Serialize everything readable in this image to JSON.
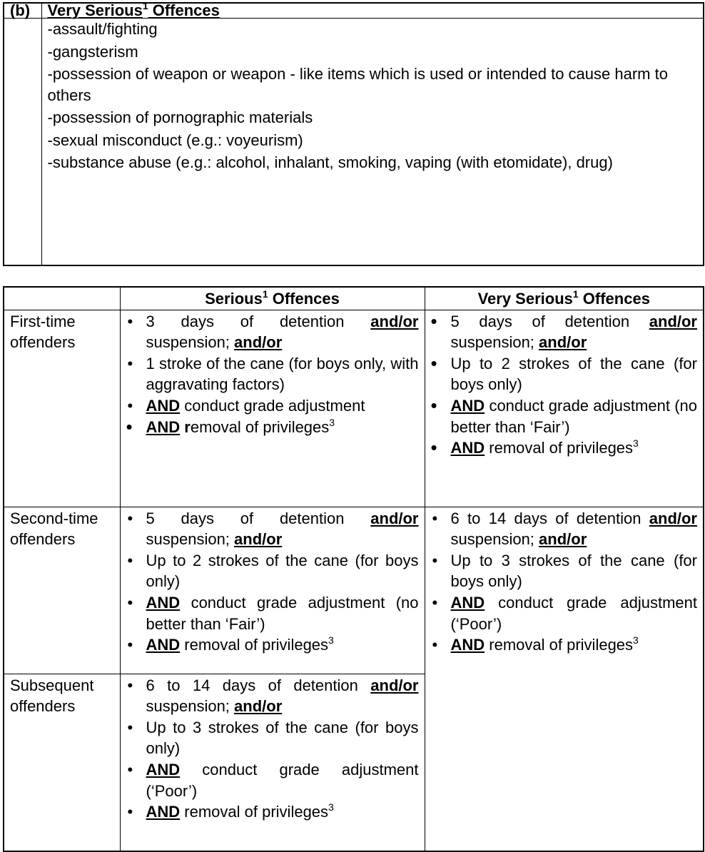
{
  "offence_list": {
    "label": "(b)",
    "heading": [
      {
        "t": "Very Serious",
        "s": "u"
      },
      {
        "t": "1",
        "s": "sup"
      },
      {
        "t": " Offences",
        "s": "u"
      }
    ],
    "items": [
      "-assault/fighting",
      "-gangsterism",
      "-possession of weapon or weapon - like items which is used or intended to cause harm to others",
      "-possession of pornographic materials",
      "-sexual misconduct (e.g.: voyeurism)",
      "-substance abuse (e.g.: alcohol, inhalant, smoking, vaping (with etomidate), drug)"
    ]
  },
  "punishment_table": {
    "headers": [
      [],
      [
        {
          "t": "Serious",
          "s": "b"
        },
        {
          "t": "1",
          "s": "sup"
        },
        {
          "t": " Offences",
          "s": "b"
        }
      ],
      [
        {
          "t": "Very Serious",
          "s": "b"
        },
        {
          "t": "1",
          "s": "sup"
        },
        {
          "t": " Offences",
          "s": "b"
        }
      ]
    ],
    "rows": [
      {
        "label": "First-time offenders",
        "serious": [
          {
            "bullet": "small",
            "segs": [
              {
                "t": "3 days of detention "
              },
              {
                "t": "and/or",
                "s": "u"
              },
              {
                "t": " suspension; "
              },
              {
                "t": "and/or",
                "s": "u"
              }
            ]
          },
          {
            "bullet": "small",
            "segs": [
              {
                "t": "1 stroke of the cane (for boys only, with aggravating factors)"
              }
            ]
          },
          {
            "bullet": "small",
            "segs": [
              {
                "t": "AND",
                "s": "u"
              },
              {
                "t": " conduct grade adjustment"
              }
            ]
          },
          {
            "bullet": "big",
            "segs": [
              {
                "t": "AND",
                "s": "u"
              },
              {
                "t": " "
              },
              {
                "t": "r",
                "s": "b"
              },
              {
                "t": "emoval of privileges"
              },
              {
                "t": "3",
                "s": "sup"
              }
            ]
          }
        ],
        "very_serious": [
          {
            "bullet": "big",
            "segs": [
              {
                "t": "5 days of detention "
              },
              {
                "t": "and/or",
                "s": "u"
              },
              {
                "t": " suspension; "
              },
              {
                "t": "and/or",
                "s": "u"
              }
            ]
          },
          {
            "bullet": "big",
            "segs": [
              {
                "t": "Up to 2 strokes of the cane (for boys only)"
              }
            ]
          },
          {
            "bullet": "big",
            "segs": [
              {
                "t": "AND",
                "s": "u"
              },
              {
                "t": " conduct grade adjustment (no better than ‘Fair’)"
              }
            ]
          },
          {
            "bullet": "big",
            "segs": [
              {
                "t": "AND",
                "s": "u"
              },
              {
                "t": " removal of privileges"
              },
              {
                "t": "3",
                "s": "sup"
              }
            ]
          }
        ]
      },
      {
        "label": "Second-time offenders",
        "serious": [
          {
            "bullet": "small",
            "segs": [
              {
                "t": "5 days of detention "
              },
              {
                "t": "and/or",
                "s": "u"
              },
              {
                "t": " suspension; "
              },
              {
                "t": "and/or",
                "s": "u"
              }
            ]
          },
          {
            "bullet": "small",
            "segs": [
              {
                "t": "Up to 2 strokes of the cane (for boys only)"
              }
            ]
          },
          {
            "bullet": "small",
            "segs": [
              {
                "t": "AND",
                "s": "u"
              },
              {
                "t": " conduct grade adjustment (no better than ‘Fair’)"
              }
            ]
          },
          {
            "bullet": "small",
            "segs": [
              {
                "t": "AND",
                "s": "u"
              },
              {
                "t": " removal of privileges"
              },
              {
                "t": "3",
                "s": "sup"
              }
            ]
          }
        ],
        "very_serious": [
          {
            "bullet": "small",
            "segs": [
              {
                "t": "6 to 14 days of detention "
              },
              {
                "t": "and/or",
                "s": "u"
              },
              {
                "t": " suspension; "
              },
              {
                "t": "and/or",
                "s": "u"
              }
            ]
          },
          {
            "bullet": "small",
            "segs": [
              {
                "t": "Up to 3 strokes of the cane (for boys only)"
              }
            ]
          },
          {
            "bullet": "small",
            "segs": [
              {
                "t": "AND",
                "s": "u"
              },
              {
                "t": " conduct grade adjustment (‘Poor’)"
              }
            ]
          },
          {
            "bullet": "small",
            "segs": [
              {
                "t": "AND",
                "s": "u"
              },
              {
                "t": " removal of privileges"
              },
              {
                "t": "3",
                "s": "sup"
              }
            ]
          }
        ]
      },
      {
        "label": "Subsequent offenders",
        "serious": [
          {
            "bullet": "small",
            "segs": [
              {
                "t": "6 to 14 days of detention "
              },
              {
                "t": "and/or",
                "s": "u"
              },
              {
                "t": " suspension; "
              },
              {
                "t": "and/or",
                "s": "u"
              }
            ]
          },
          {
            "bullet": "small",
            "segs": [
              {
                "t": "Up to 3 strokes of the cane (for boys only)"
              }
            ]
          },
          {
            "bullet": "small",
            "segs": [
              {
                "t": "AND",
                "s": "u"
              },
              {
                "t": " conduct grade adjustment (‘Poor’)"
              }
            ]
          },
          {
            "bullet": "small",
            "segs": [
              {
                "t": "AND",
                "s": "u"
              },
              {
                "t": " removal of privileges"
              },
              {
                "t": "3",
                "s": "sup"
              }
            ]
          }
        ]
      }
    ]
  }
}
